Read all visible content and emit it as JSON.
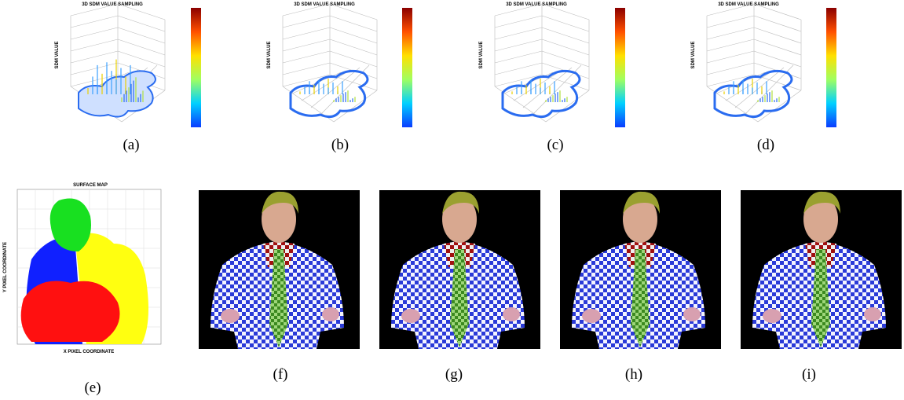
{
  "top_panels": [
    {
      "title": "3D SDM VALUE SAMPLING",
      "axis_label": "SDM VALUE",
      "caption": "(a)"
    },
    {
      "title": "3D SDM VALUE SAMPLING",
      "axis_label": "SDM VALUE",
      "caption": "(b)"
    },
    {
      "title": "3D SDM VALUE SAMPLING",
      "axis_label": "SDM VALUE",
      "caption": "(c)"
    },
    {
      "title": "3D SDM VALUE SAMPLING",
      "axis_label": "SDM VALUE",
      "caption": "(d)"
    }
  ],
  "surface_map": {
    "title": "SURFACE MAP",
    "y_label": "Y PIXEL COORDINATE",
    "x_label": "X PIXEL COORDINATE",
    "caption": "(e)"
  },
  "render_panels": [
    {
      "caption": "(f)"
    },
    {
      "caption": "(g)"
    },
    {
      "caption": "(h)"
    },
    {
      "caption": "(i)"
    }
  ]
}
